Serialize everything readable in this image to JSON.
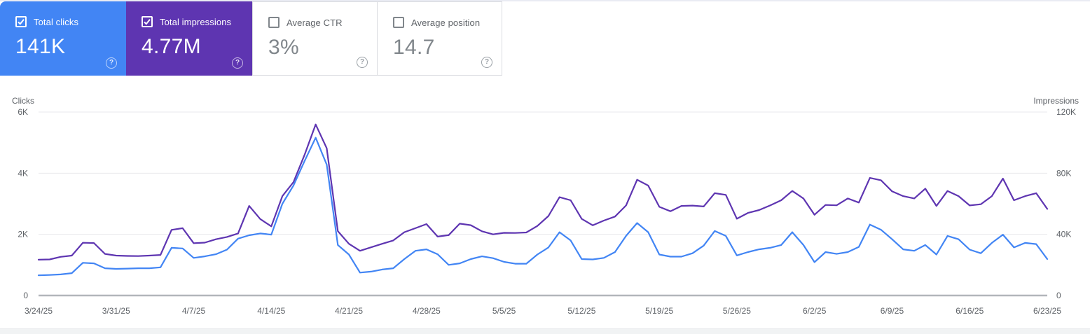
{
  "cards": [
    {
      "label": "Total clicks",
      "value": "141K",
      "checked": true,
      "bg": "#4285f4"
    },
    {
      "label": "Total impressions",
      "value": "4.77M",
      "checked": true,
      "bg": "#5e35b1"
    },
    {
      "label": "Average CTR",
      "value": "3%",
      "checked": false,
      "bg": "#ffffff"
    },
    {
      "label": "Average position",
      "value": "14.7",
      "checked": false,
      "bg": "#ffffff"
    }
  ],
  "help_glyph": "?",
  "chart_data": {
    "type": "line",
    "title": "",
    "grid": true,
    "legend_position": "none",
    "left_axis": {
      "label": "Clicks",
      "ticks": [
        "6K",
        "4K",
        "2K",
        "0"
      ],
      "max": 6000,
      "min": 0
    },
    "right_axis": {
      "label": "Impressions",
      "ticks": [
        "120K",
        "80K",
        "40K",
        "0"
      ],
      "max": 120000,
      "min": 0
    },
    "x_tick_labels": [
      "3/24/25",
      "3/31/25",
      "4/7/25",
      "4/14/25",
      "4/21/25",
      "4/28/25",
      "5/5/25",
      "5/12/25",
      "5/19/25",
      "5/26/25",
      "6/2/25",
      "6/9/25",
      "6/16/25",
      "6/23/25"
    ],
    "x_tick_days": [
      0,
      7,
      14,
      21,
      28,
      35,
      42,
      49,
      56,
      63,
      70,
      77,
      84,
      91
    ],
    "x_range_days": 92,
    "series": [
      {
        "name": "Total clicks",
        "axis": "left",
        "color": "#4285f4",
        "values": [
          660,
          670,
          690,
          730,
          1070,
          1050,
          890,
          870,
          880,
          890,
          890,
          920,
          1560,
          1540,
          1230,
          1280,
          1350,
          1500,
          1860,
          1970,
          2030,
          1990,
          3000,
          3600,
          4400,
          5160,
          4280,
          1650,
          1340,
          750,
          780,
          850,
          890,
          1190,
          1460,
          1510,
          1350,
          1000,
          1050,
          1190,
          1280,
          1220,
          1100,
          1040,
          1040,
          1340,
          1570,
          2070,
          1800,
          1190,
          1180,
          1230,
          1420,
          1950,
          2370,
          2070,
          1340,
          1270,
          1270,
          1380,
          1630,
          2110,
          1950,
          1310,
          1420,
          1510,
          1560,
          1650,
          2070,
          1650,
          1090,
          1420,
          1360,
          1420,
          1590,
          2320,
          2150,
          1840,
          1510,
          1460,
          1650,
          1340,
          1950,
          1840,
          1500,
          1380,
          1720,
          1990,
          1570,
          1720,
          1680,
          1190
        ]
      },
      {
        "name": "Total impressions",
        "axis": "right",
        "color": "#5e35b1",
        "values": [
          23400,
          23600,
          25300,
          26100,
          34500,
          34300,
          27200,
          26100,
          25900,
          25800,
          26100,
          26500,
          42900,
          44000,
          34200,
          34600,
          36800,
          38300,
          40600,
          58600,
          50000,
          45200,
          65000,
          74200,
          92000,
          111900,
          96300,
          42100,
          33800,
          29200,
          31500,
          33800,
          36000,
          41400,
          44000,
          46700,
          38500,
          39500,
          47000,
          46000,
          42000,
          40000,
          41000,
          40900,
          41200,
          45500,
          52000,
          64300,
          62300,
          50100,
          45900,
          49000,
          51600,
          58900,
          75700,
          71900,
          58000,
          55100,
          58600,
          58800,
          58200,
          66900,
          65800,
          50200,
          54000,
          55900,
          58900,
          62300,
          68400,
          63500,
          52800,
          59200,
          59000,
          63500,
          60800,
          76900,
          75400,
          68100,
          65000,
          63500,
          69900,
          58600,
          68400,
          65000,
          58900,
          59700,
          65000,
          76500,
          62300,
          65000,
          66900,
          56600
        ]
      }
    ]
  }
}
